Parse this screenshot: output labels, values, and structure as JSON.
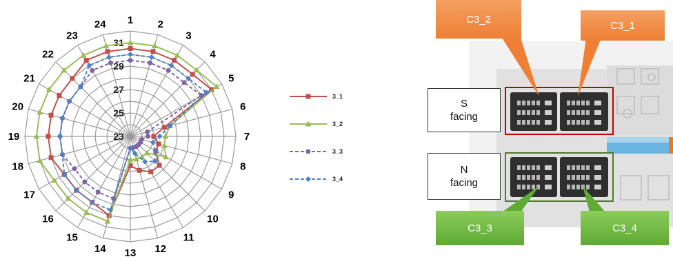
{
  "chart_data": {
    "type": "radar",
    "spokes": [
      "1",
      "2",
      "3",
      "4",
      "5",
      "6",
      "7",
      "8",
      "9",
      "10",
      "11",
      "12",
      "13",
      "14",
      "15",
      "16",
      "17",
      "18",
      "19",
      "20",
      "21",
      "22",
      "23",
      "24"
    ],
    "ring_labels": [
      "23",
      "25",
      "27",
      "29",
      "31"
    ],
    "rlim": [
      23,
      32
    ],
    "grid": true,
    "legend_position": "right",
    "series": [
      {
        "name": "3_1",
        "color": "#c0504d",
        "marker": "square",
        "dash": "solid",
        "values": [
          30.5,
          30.5,
          30.5,
          30.5,
          31.0,
          26.0,
          25.0,
          25.5,
          25.5,
          26.5,
          26.5,
          26.0,
          25.5,
          30.0,
          29.5,
          29.5,
          29.5,
          30.0,
          30.0,
          30.0,
          30.0,
          30.0,
          30.5,
          30.5
        ]
      },
      {
        "name": "3_2",
        "color": "#9bbb59",
        "marker": "triangle",
        "dash": "solid",
        "values": [
          31.0,
          31.0,
          31.0,
          31.0,
          31.5,
          26.5,
          26.0,
          26.0,
          26.5,
          25.0,
          25.0,
          25.0,
          25.0,
          30.5,
          30.5,
          30.5,
          30.5,
          31.0,
          31.0,
          31.0,
          31.0,
          31.0,
          31.0,
          31.0
        ]
      },
      {
        "name": "3_3",
        "color": "#8064a2",
        "marker": "circle",
        "dash": "dashed",
        "values": [
          29.5,
          29.5,
          29.5,
          29.5,
          30.0,
          24.5,
          24.5,
          24.0,
          24.0,
          24.0,
          24.0,
          24.0,
          24.0,
          28.5,
          28.5,
          28.5,
          28.5,
          29.0,
          29.0,
          29.0,
          29.0,
          29.0,
          29.5,
          29.5
        ]
      },
      {
        "name": "3_4",
        "color": "#4f81bd",
        "marker": "diamond",
        "dash": "dashed",
        "values": [
          30.0,
          30.0,
          30.0,
          30.0,
          30.5,
          26.5,
          25.5,
          25.0,
          25.5,
          26.0,
          25.5,
          24.5,
          24.0,
          29.5,
          29.5,
          29.5,
          29.5,
          29.0,
          29.0,
          29.0,
          29.0,
          29.0,
          30.0,
          30.0
        ]
      }
    ]
  },
  "floorplan": {
    "callouts": {
      "c3_2": "C3_2",
      "c3_1": "C3_1",
      "c3_3": "C3_3",
      "c3_4": "C3_4"
    },
    "s_facing": {
      "line1": "S",
      "line2": "facing"
    },
    "n_facing": {
      "line1": "N",
      "line2": "facing"
    },
    "colors": {
      "orange": "#ee7f35",
      "green": "#5fa935",
      "red_frame": "#c00000",
      "green_frame": "#4f7a28"
    }
  }
}
